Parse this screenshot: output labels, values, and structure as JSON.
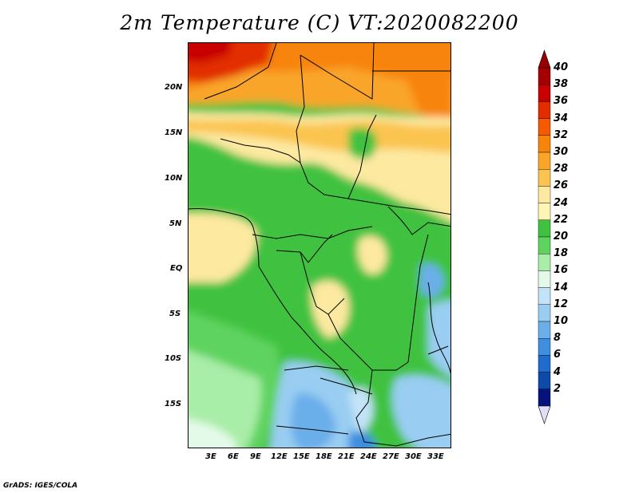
{
  "title": "2m Temperature (C) VT:2020082200",
  "credit": "GrADS: IGES/COLA",
  "lat_labels": [
    "20N",
    "15N",
    "10N",
    "5N",
    "EQ",
    "5S",
    "10S",
    "15S"
  ],
  "lon_labels": [
    "3E",
    "6E",
    "9E",
    "12E",
    "15E",
    "18E",
    "21E",
    "24E",
    "27E",
    "30E",
    "33E"
  ],
  "colorbar": {
    "labels": [
      "40",
      "38",
      "36",
      "34",
      "32",
      "30",
      "28",
      "26",
      "24",
      "22",
      "20",
      "18",
      "16",
      "14",
      "12",
      "10",
      "8",
      "6",
      "4",
      "2"
    ],
    "colors": [
      "#a50000",
      "#c80000",
      "#e22d00",
      "#f55a00",
      "#f7850a",
      "#f9a52a",
      "#fbc450",
      "#fde9a0",
      "#fff6b5",
      "#3fc23f",
      "#5fd35f",
      "#a8eda8",
      "#e4fae9",
      "#c3e3f8",
      "#99cdf2",
      "#6aaeea",
      "#3e8fe0",
      "#1f6ccc",
      "#0d4aaa",
      "#07137d"
    ],
    "top_arrow_color": "#960000",
    "bottom_arrow_color": "#e0dff5"
  }
}
